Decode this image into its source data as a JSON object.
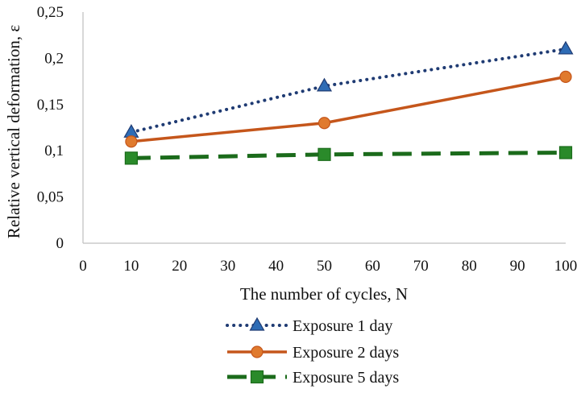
{
  "chart_data": {
    "type": "line",
    "xlabel": "The number of cycles, N",
    "ylabel": "Relative vertical deformation, ε",
    "xlim": [
      0,
      100
    ],
    "ylim": [
      0,
      0.25
    ],
    "x_ticks": [
      "0",
      "10",
      "20",
      "30",
      "40",
      "50",
      "60",
      "70",
      "80",
      "90",
      "100"
    ],
    "y_ticks": [
      "0",
      "0,05",
      "0,1",
      "0,15",
      "0,2",
      "0,25"
    ],
    "grid": false,
    "legend_position": "bottom",
    "series": [
      {
        "name": "Exposure 1 day",
        "x": [
          10,
          50,
          100
        ],
        "values": [
          0.12,
          0.17,
          0.21
        ],
        "color": "#1f3b73",
        "marker": "triangle",
        "marker_color": "#2e6cb5",
        "line_style": "dotted"
      },
      {
        "name": "Exposure 2 days",
        "x": [
          10,
          50,
          100
        ],
        "values": [
          0.11,
          0.13,
          0.18
        ],
        "color": "#c5561b",
        "marker": "circle",
        "marker_color": "#e07a2e",
        "line_style": "solid"
      },
      {
        "name": "Exposure 5 days",
        "x": [
          10,
          50,
          100
        ],
        "values": [
          0.092,
          0.096,
          0.098
        ],
        "color": "#1b6b1b",
        "marker": "square",
        "marker_color": "#2a8a2a",
        "line_style": "dashed"
      }
    ]
  }
}
